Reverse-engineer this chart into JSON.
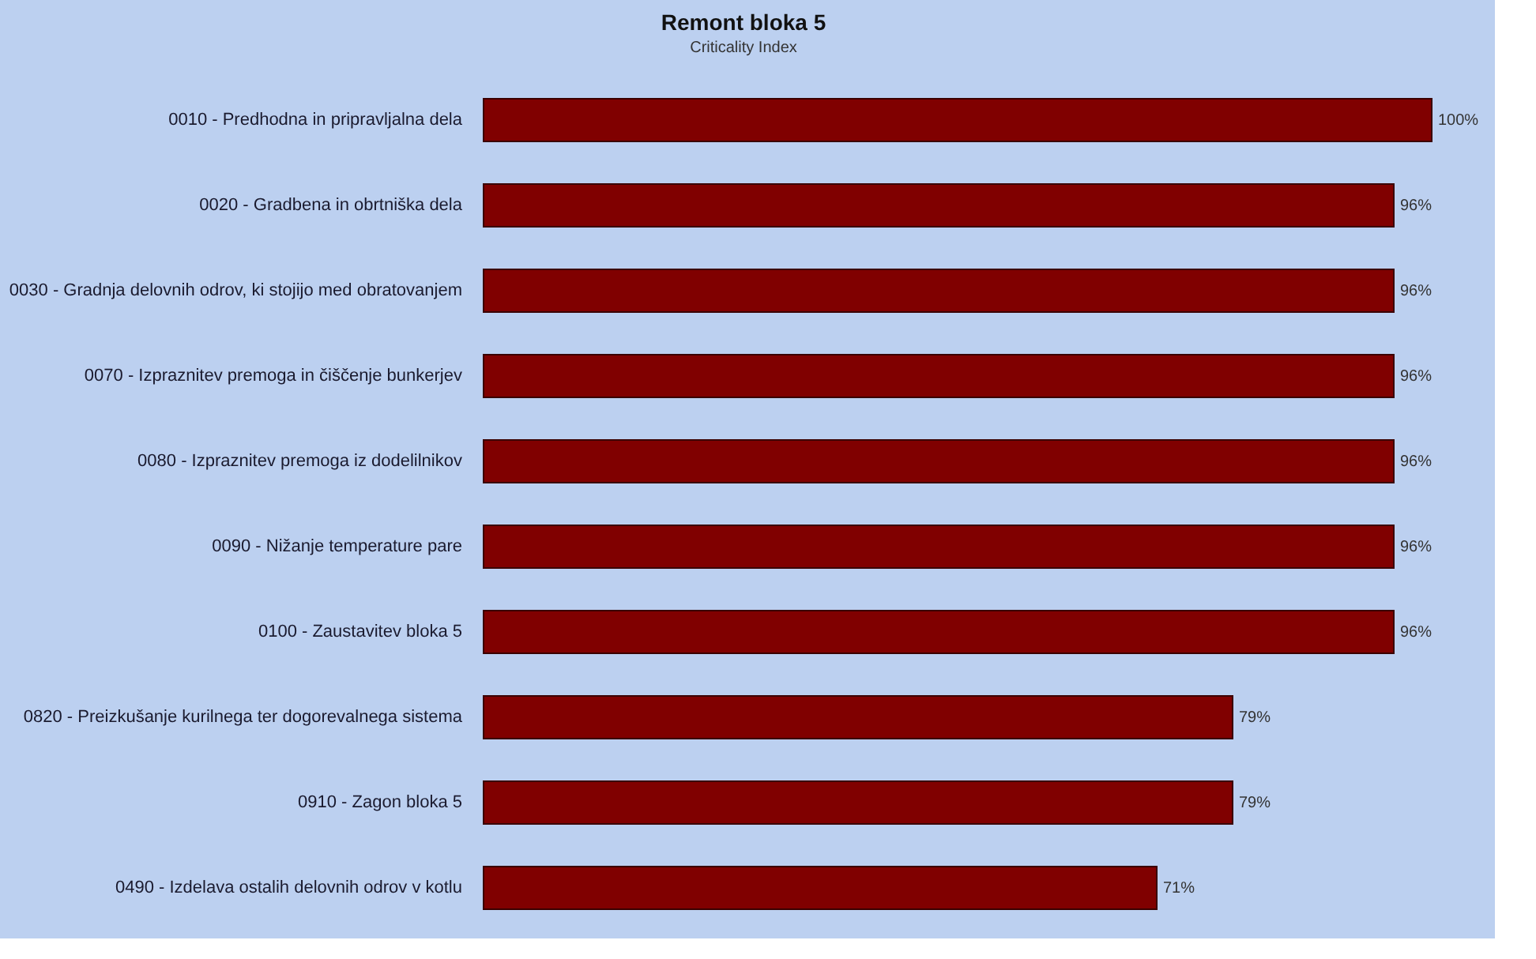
{
  "chart_data": {
    "type": "bar",
    "orientation": "horizontal",
    "title": "Remont bloka 5",
    "subtitle": "Criticality Index",
    "categories": [
      "0010 - Predhodna in pripravljalna dela",
      "0020 - Gradbena in obrtniška dela",
      "0030 - Gradnja delovnih odrov, ki stojijo med obratovanjem",
      "0070 - Izpraznitev premoga in čiščenje bunkerjev",
      "0080 - Izpraznitev premoga iz dodelilnikov",
      "0090 - Nižanje temperature pare",
      "0100 - Zaustavitev bloka 5",
      "0820 -  Preizkušanje kurilnega ter dogorevalnega sistema",
      "0910 -  Zagon bloka 5",
      "0490 -  Izdelava ostalih delovnih odrov v kotlu"
    ],
    "values": [
      100,
      96,
      96,
      96,
      96,
      96,
      96,
      79,
      79,
      71
    ],
    "value_labels": [
      "100%",
      "96%",
      "96%",
      "96%",
      "96%",
      "96%",
      "96%",
      "79%",
      "79%",
      "71%"
    ],
    "color": "#800000",
    "grid": false,
    "tick_labels": "y"
  }
}
